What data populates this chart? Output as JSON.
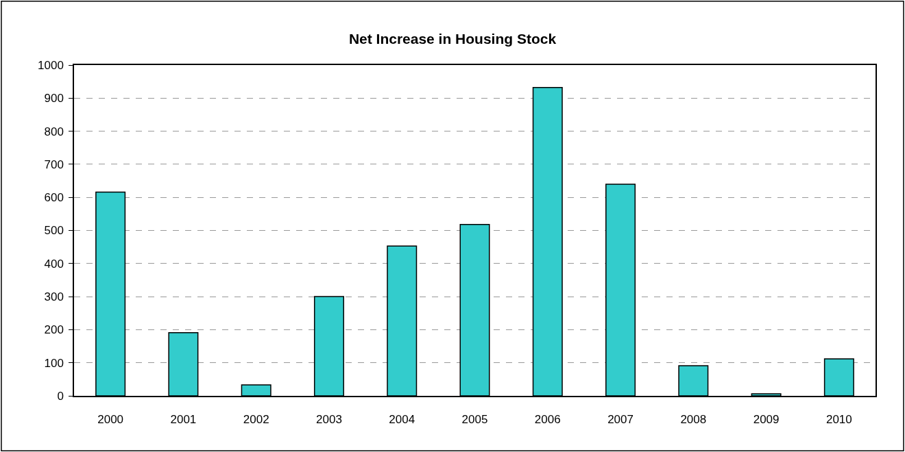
{
  "chart_data": {
    "type": "bar",
    "title": "Net Increase in Housing Stock",
    "categories": [
      "2000",
      "2001",
      "2002",
      "2003",
      "2004",
      "2005",
      "2006",
      "2007",
      "2008",
      "2009",
      "2010"
    ],
    "values": [
      616,
      191,
      33,
      300,
      453,
      518,
      932,
      640,
      91,
      6,
      112
    ],
    "color": "#33cccc",
    "ylim": [
      0,
      1000
    ],
    "yticks": [
      0,
      100,
      200,
      300,
      400,
      500,
      600,
      700,
      800,
      900,
      1000
    ],
    "grid": "y"
  }
}
